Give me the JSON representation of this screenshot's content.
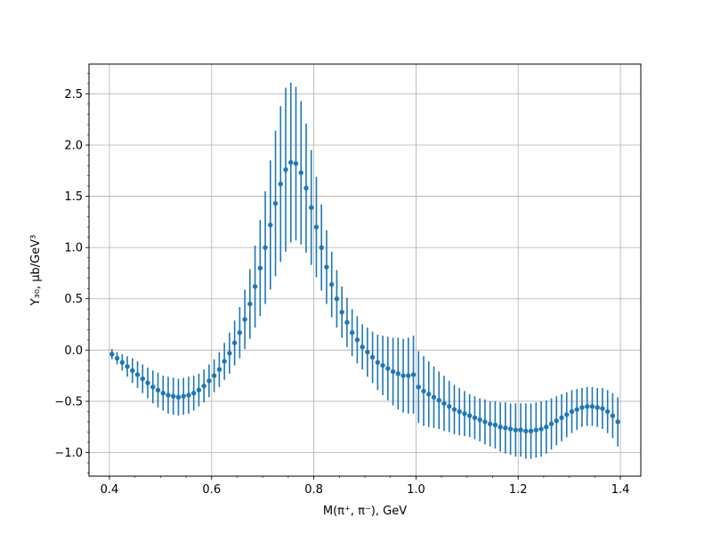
{
  "chart_data": {
    "type": "scatter",
    "title": "",
    "xlabel": "M(π⁺, π⁻), GeV",
    "ylabel": "Y₃₀, μb/GeV³",
    "xlim": [
      0.36,
      1.44
    ],
    "ylim": [
      -1.23,
      2.79
    ],
    "grid": true,
    "legend": "none",
    "marker_color": "#1f77b4",
    "x_ticks": [
      {
        "value": 0.4,
        "label": "0.4"
      },
      {
        "value": 0.6,
        "label": "0.6"
      },
      {
        "value": 0.8,
        "label": "0.8"
      },
      {
        "value": 1.0,
        "label": "1.0"
      },
      {
        "value": 1.2,
        "label": "1.2"
      },
      {
        "value": 1.4,
        "label": "1.4"
      }
    ],
    "y_ticks": [
      {
        "value": -1.0,
        "label": "−1.0"
      },
      {
        "value": -0.5,
        "label": "−0.5"
      },
      {
        "value": 0.0,
        "label": "0.0"
      },
      {
        "value": 0.5,
        "label": "0.5"
      },
      {
        "value": 1.0,
        "label": "1.0"
      },
      {
        "value": 1.5,
        "label": "1.5"
      },
      {
        "value": 2.0,
        "label": "2.0"
      },
      {
        "value": 2.5,
        "label": "2.5"
      }
    ],
    "series": [
      {
        "x": [
          0.405,
          0.415,
          0.425,
          0.435,
          0.445,
          0.455,
          0.465,
          0.475,
          0.485,
          0.495,
          0.505,
          0.515,
          0.525,
          0.535,
          0.545,
          0.555,
          0.565,
          0.575,
          0.585,
          0.595,
          0.605,
          0.615,
          0.625,
          0.635,
          0.645,
          0.655,
          0.665,
          0.675,
          0.685,
          0.695,
          0.705,
          0.715,
          0.725,
          0.735,
          0.745,
          0.755,
          0.765,
          0.775,
          0.785,
          0.795,
          0.805,
          0.815,
          0.825,
          0.835,
          0.845,
          0.855,
          0.865,
          0.875,
          0.885,
          0.895,
          0.905,
          0.915,
          0.925,
          0.935,
          0.945,
          0.955,
          0.965,
          0.975,
          0.985,
          0.995,
          1.005,
          1.015,
          1.025,
          1.035,
          1.045,
          1.055,
          1.065,
          1.075,
          1.085,
          1.095,
          1.105,
          1.115,
          1.125,
          1.135,
          1.145,
          1.155,
          1.165,
          1.175,
          1.185,
          1.195,
          1.205,
          1.215,
          1.225,
          1.235,
          1.245,
          1.255,
          1.265,
          1.275,
          1.285,
          1.295,
          1.305,
          1.315,
          1.325,
          1.335,
          1.345,
          1.355,
          1.365,
          1.375,
          1.385,
          1.395
        ],
        "y": [
          -0.04,
          -0.08,
          -0.12,
          -0.16,
          -0.2,
          -0.24,
          -0.28,
          -0.32,
          -0.36,
          -0.39,
          -0.42,
          -0.44,
          -0.45,
          -0.46,
          -0.45,
          -0.44,
          -0.42,
          -0.39,
          -0.35,
          -0.3,
          -0.25,
          -0.19,
          -0.11,
          -0.03,
          0.07,
          0.17,
          0.3,
          0.45,
          0.62,
          0.8,
          1.0,
          1.22,
          1.43,
          1.62,
          1.76,
          1.83,
          1.82,
          1.73,
          1.58,
          1.39,
          1.2,
          1.0,
          0.81,
          0.64,
          0.5,
          0.37,
          0.27,
          0.17,
          0.1,
          0.03,
          -0.02,
          -0.07,
          -0.12,
          -0.15,
          -0.18,
          -0.21,
          -0.23,
          -0.25,
          -0.25,
          -0.24,
          -0.36,
          -0.4,
          -0.43,
          -0.46,
          -0.49,
          -0.52,
          -0.55,
          -0.58,
          -0.6,
          -0.62,
          -0.64,
          -0.66,
          -0.68,
          -0.7,
          -0.72,
          -0.73,
          -0.75,
          -0.76,
          -0.77,
          -0.78,
          -0.78,
          -0.79,
          -0.79,
          -0.78,
          -0.77,
          -0.75,
          -0.72,
          -0.69,
          -0.66,
          -0.63,
          -0.6,
          -0.58,
          -0.56,
          -0.55,
          -0.55,
          -0.56,
          -0.57,
          -0.6,
          -0.64,
          -0.7
        ],
        "err": [
          0.05,
          0.06,
          0.08,
          0.1,
          0.12,
          0.13,
          0.14,
          0.15,
          0.16,
          0.17,
          0.17,
          0.18,
          0.18,
          0.18,
          0.18,
          0.18,
          0.17,
          0.16,
          0.16,
          0.16,
          0.16,
          0.17,
          0.18,
          0.2,
          0.22,
          0.25,
          0.29,
          0.34,
          0.4,
          0.47,
          0.55,
          0.63,
          0.71,
          0.76,
          0.8,
          0.78,
          0.75,
          0.7,
          0.63,
          0.56,
          0.49,
          0.42,
          0.36,
          0.32,
          0.28,
          0.25,
          0.24,
          0.23,
          0.23,
          0.22,
          0.24,
          0.25,
          0.27,
          0.29,
          0.31,
          0.33,
          0.35,
          0.36,
          0.37,
          0.38,
          0.35,
          0.34,
          0.32,
          0.3,
          0.28,
          0.27,
          0.25,
          0.24,
          0.23,
          0.22,
          0.21,
          0.21,
          0.21,
          0.22,
          0.22,
          0.23,
          0.24,
          0.25,
          0.25,
          0.26,
          0.26,
          0.27,
          0.27,
          0.27,
          0.27,
          0.26,
          0.25,
          0.24,
          0.23,
          0.22,
          0.21,
          0.2,
          0.19,
          0.19,
          0.19,
          0.19,
          0.2,
          0.21,
          0.22,
          0.24
        ]
      }
    ]
  }
}
